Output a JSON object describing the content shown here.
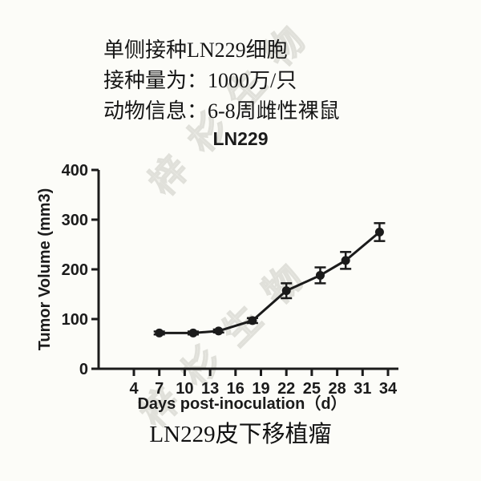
{
  "header": {
    "line1": "单侧接种LN229细胞",
    "line2": "接种量为：1000万/只",
    "line3": "动物信息：6-8周雌性裸鼠"
  },
  "caption": "LN229皮下移植瘤",
  "watermark": {
    "text": "梓杉生物",
    "color": "#e0e0da"
  },
  "colors": {
    "ink": "#1b1b1b",
    "background": "#fcfcf8"
  },
  "chart_data": {
    "type": "line",
    "title": "LN229",
    "xlabel": "Days post-inoculation（d）",
    "ylabel": "Tumor Volume (mm3)",
    "x": [
      7,
      11,
      14,
      18,
      22,
      26,
      29,
      33
    ],
    "series": [
      {
        "name": "LN229",
        "values": [
          72,
          72,
          76,
          97,
          157,
          188,
          218,
          275
        ],
        "errors": [
          3,
          3,
          3,
          5,
          15,
          16,
          17,
          18
        ]
      }
    ],
    "x_ticks": [
      4,
      7,
      10,
      13,
      16,
      19,
      22,
      25,
      28,
      31,
      34
    ],
    "y_ticks": [
      0,
      100,
      200,
      300,
      400
    ],
    "xlim": [
      4,
      34
    ],
    "ylim": [
      0,
      400
    ],
    "grid": false,
    "legend": false,
    "marker": "circle",
    "error_bars": true,
    "color": "#1b1b1b"
  }
}
